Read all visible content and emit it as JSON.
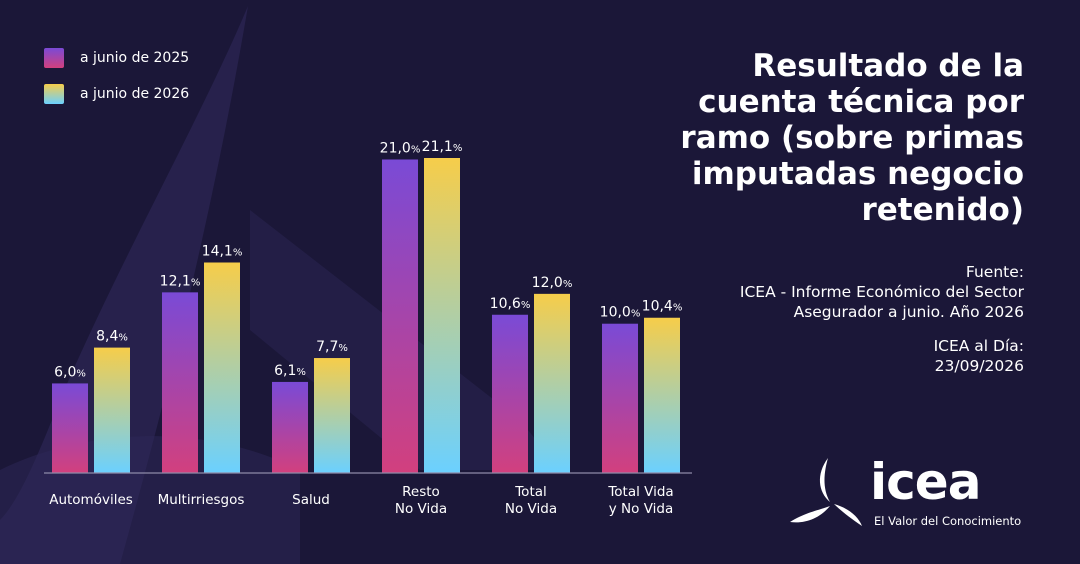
{
  "legend": {
    "series1": "a junio de 2025",
    "series2": "a junio de 2026"
  },
  "title": "Resultado de la cuenta técnica por ramo (sobre primas imputadas negocio retenido)",
  "source": {
    "label": "Fuente:",
    "text": "ICEA - Informe Económico del Sector Asegurador a junio. Año 2026",
    "date_label": "ICEA al Día:",
    "date": "23/09/2026"
  },
  "logo": {
    "word": "icea",
    "tagline": "El Valor del Conocimiento"
  },
  "colors": {
    "background": "#1b1738",
    "series1_top": "#7a4ad6",
    "series1_bottom": "#d2407e",
    "series2_top": "#f6cd4a",
    "series2_bottom": "#6bd0ff"
  },
  "chart_data": {
    "type": "bar",
    "categories": [
      "Automóviles",
      "Multirriesgos",
      "Salud",
      "Resto\nNo Vida",
      "Total\nNo Vida",
      "Total Vida\ny No Vida"
    ],
    "series": [
      {
        "name": "a junio de 2025",
        "values": [
          6.0,
          12.1,
          6.1,
          21.0,
          10.6,
          10.0
        ],
        "labels": [
          "6,0",
          "12,1",
          "6,1",
          "21,0",
          "10,6",
          "10,0"
        ]
      },
      {
        "name": "a junio de 2026",
        "values": [
          8.4,
          14.1,
          7.7,
          21.1,
          12.0,
          10.4
        ],
        "labels": [
          "8,4",
          "14,1",
          "7,7",
          "21,1",
          "12,0",
          "10,4"
        ]
      }
    ],
    "unit": "%",
    "ylim": [
      0,
      21.1
    ],
    "grid": false,
    "legend_position": "top-left"
  }
}
